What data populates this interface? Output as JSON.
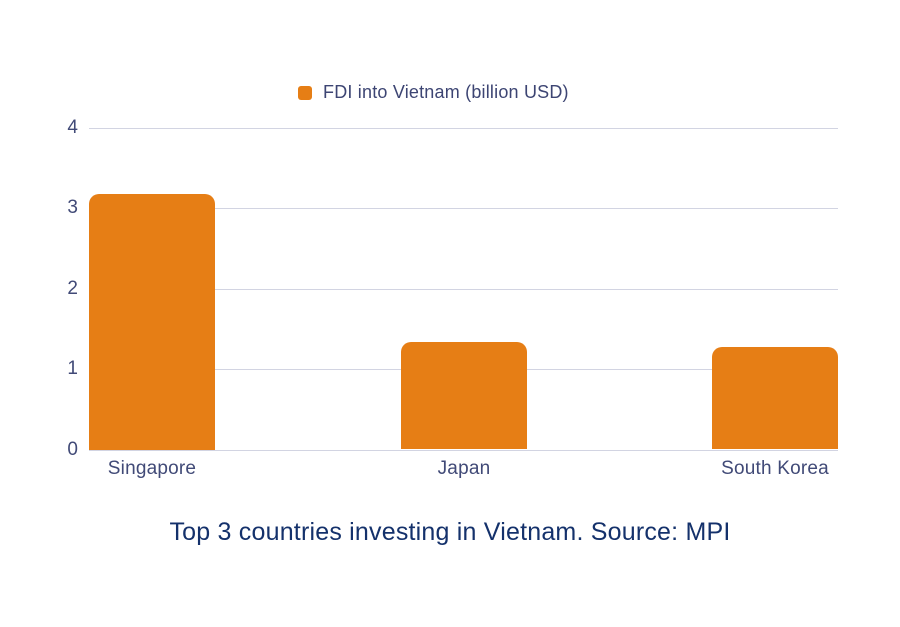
{
  "page": {
    "background_color": "#ffffff"
  },
  "legend": {
    "label": "FDI into Vietnam (billion USD)",
    "marker_color": "#e67e15"
  },
  "caption": {
    "text": "Top 3 countries investing in Vietnam. Source: MPI",
    "color": "#14316b"
  },
  "colors": {
    "bar": "#e67e15",
    "gridline": "#d2d4e2",
    "axis_text": "#414a77",
    "legend_text": "#3d4573",
    "caption_text": "#14316b"
  },
  "chart_data": {
    "type": "bar",
    "categories": [
      "Singapore",
      "Japan",
      "South Korea"
    ],
    "values": [
      3.18,
      1.33,
      1.27
    ],
    "series": [
      {
        "name": "FDI into Vietnam (billion USD)",
        "values": [
          3.18,
          1.33,
          1.27
        ]
      }
    ],
    "title": "Top 3 countries investing in Vietnam. Source: MPI",
    "xlabel": "",
    "ylabel": "",
    "ylim": [
      0,
      4
    ],
    "yticks": [
      0,
      1,
      2,
      3,
      4
    ],
    "grid": true,
    "legend_position": "top",
    "bar_color": "#e67e15"
  }
}
